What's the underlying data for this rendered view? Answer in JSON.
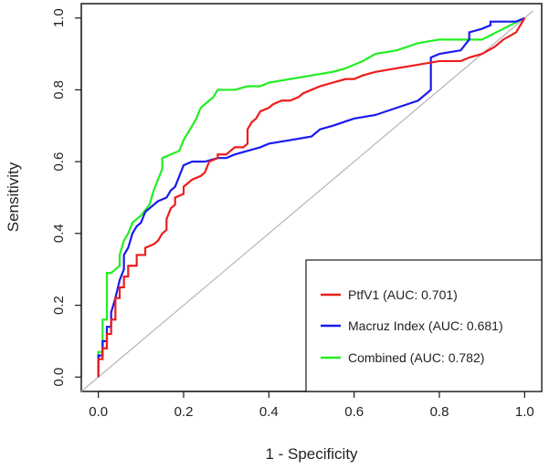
{
  "chart_data": {
    "type": "line",
    "title": "",
    "xlabel": "1 - Specificity",
    "ylabel": "Sensitivity",
    "xlim": [
      -0.04,
      1.04
    ],
    "ylim": [
      -0.04,
      1.04
    ],
    "xticks": [
      0.0,
      0.2,
      0.4,
      0.6,
      0.8,
      1.0
    ],
    "yticks": [
      0.0,
      0.2,
      0.4,
      0.6,
      0.8,
      1.0
    ],
    "xtick_labels": [
      "0.0",
      "0.2",
      "0.4",
      "0.6",
      "0.8",
      "1.0"
    ],
    "ytick_labels": [
      "0.0",
      "0.2",
      "0.4",
      "0.6",
      "0.8",
      "1.0"
    ],
    "reference_line": {
      "x": [
        -0.04,
        1.02
      ],
      "y": [
        -0.04,
        1.02
      ],
      "color": "#b5b5b5"
    },
    "legend_position": "bottom-right",
    "series": [
      {
        "name": "PtfV1 (AUC: 0.701)",
        "color": "#ee1c1c",
        "x": [
          0.0,
          0.0,
          0.01,
          0.01,
          0.02,
          0.02,
          0.03,
          0.03,
          0.04,
          0.04,
          0.05,
          0.05,
          0.06,
          0.06,
          0.07,
          0.07,
          0.09,
          0.09,
          0.11,
          0.11,
          0.13,
          0.14,
          0.15,
          0.16,
          0.16,
          0.17,
          0.18,
          0.18,
          0.2,
          0.2,
          0.21,
          0.22,
          0.24,
          0.25,
          0.26,
          0.28,
          0.28,
          0.3,
          0.32,
          0.34,
          0.35,
          0.35,
          0.36,
          0.37,
          0.38,
          0.4,
          0.41,
          0.43,
          0.45,
          0.47,
          0.48,
          0.5,
          0.52,
          0.55,
          0.58,
          0.6,
          0.62,
          0.65,
          0.7,
          0.75,
          0.8,
          0.85,
          0.87,
          0.9,
          0.93,
          0.95,
          0.98,
          1.0
        ],
        "y": [
          0.0,
          0.05,
          0.05,
          0.08,
          0.08,
          0.12,
          0.12,
          0.16,
          0.16,
          0.22,
          0.22,
          0.25,
          0.25,
          0.28,
          0.28,
          0.31,
          0.31,
          0.34,
          0.34,
          0.36,
          0.37,
          0.38,
          0.4,
          0.41,
          0.44,
          0.47,
          0.48,
          0.5,
          0.51,
          0.53,
          0.54,
          0.55,
          0.56,
          0.57,
          0.6,
          0.61,
          0.62,
          0.62,
          0.64,
          0.64,
          0.65,
          0.69,
          0.71,
          0.72,
          0.74,
          0.75,
          0.76,
          0.77,
          0.77,
          0.78,
          0.79,
          0.8,
          0.81,
          0.82,
          0.83,
          0.83,
          0.84,
          0.85,
          0.86,
          0.87,
          0.88,
          0.88,
          0.89,
          0.9,
          0.92,
          0.94,
          0.96,
          1.0
        ]
      },
      {
        "name": "Macruz Index (AUC: 0.681)",
        "color": "#1a1aee",
        "x": [
          0.0,
          0.0,
          0.01,
          0.01,
          0.02,
          0.02,
          0.03,
          0.03,
          0.04,
          0.05,
          0.06,
          0.06,
          0.07,
          0.08,
          0.09,
          0.1,
          0.11,
          0.13,
          0.14,
          0.16,
          0.17,
          0.18,
          0.19,
          0.2,
          0.22,
          0.25,
          0.28,
          0.3,
          0.32,
          0.35,
          0.38,
          0.4,
          0.45,
          0.5,
          0.52,
          0.55,
          0.6,
          0.65,
          0.7,
          0.75,
          0.78,
          0.78,
          0.8,
          0.85,
          0.87,
          0.87,
          0.9,
          0.92,
          0.92,
          0.95,
          0.98,
          1.0
        ],
        "y": [
          0.0,
          0.06,
          0.06,
          0.1,
          0.1,
          0.14,
          0.14,
          0.18,
          0.22,
          0.27,
          0.3,
          0.34,
          0.36,
          0.4,
          0.42,
          0.43,
          0.46,
          0.48,
          0.49,
          0.5,
          0.52,
          0.53,
          0.56,
          0.59,
          0.6,
          0.6,
          0.61,
          0.61,
          0.62,
          0.63,
          0.64,
          0.65,
          0.66,
          0.67,
          0.69,
          0.7,
          0.72,
          0.73,
          0.75,
          0.77,
          0.8,
          0.89,
          0.9,
          0.91,
          0.94,
          0.96,
          0.97,
          0.98,
          0.99,
          0.99,
          0.99,
          1.0
        ]
      },
      {
        "name": "Combined (AUC: 0.782)",
        "color": "#22ee22",
        "x": [
          0.0,
          0.0,
          0.01,
          0.01,
          0.02,
          0.02,
          0.03,
          0.04,
          0.05,
          0.05,
          0.06,
          0.07,
          0.08,
          0.1,
          0.12,
          0.13,
          0.15,
          0.15,
          0.17,
          0.19,
          0.2,
          0.21,
          0.22,
          0.23,
          0.24,
          0.26,
          0.27,
          0.28,
          0.3,
          0.32,
          0.35,
          0.38,
          0.4,
          0.45,
          0.5,
          0.55,
          0.58,
          0.6,
          0.62,
          0.65,
          0.7,
          0.75,
          0.8,
          0.85,
          0.9,
          0.95,
          1.0
        ],
        "y": [
          0.0,
          0.07,
          0.07,
          0.16,
          0.16,
          0.29,
          0.29,
          0.3,
          0.31,
          0.34,
          0.38,
          0.4,
          0.43,
          0.45,
          0.48,
          0.52,
          0.58,
          0.61,
          0.62,
          0.63,
          0.66,
          0.68,
          0.7,
          0.72,
          0.75,
          0.77,
          0.78,
          0.8,
          0.8,
          0.8,
          0.81,
          0.81,
          0.82,
          0.83,
          0.84,
          0.85,
          0.86,
          0.87,
          0.88,
          0.9,
          0.91,
          0.93,
          0.94,
          0.94,
          0.94,
          0.97,
          1.0
        ]
      }
    ]
  }
}
